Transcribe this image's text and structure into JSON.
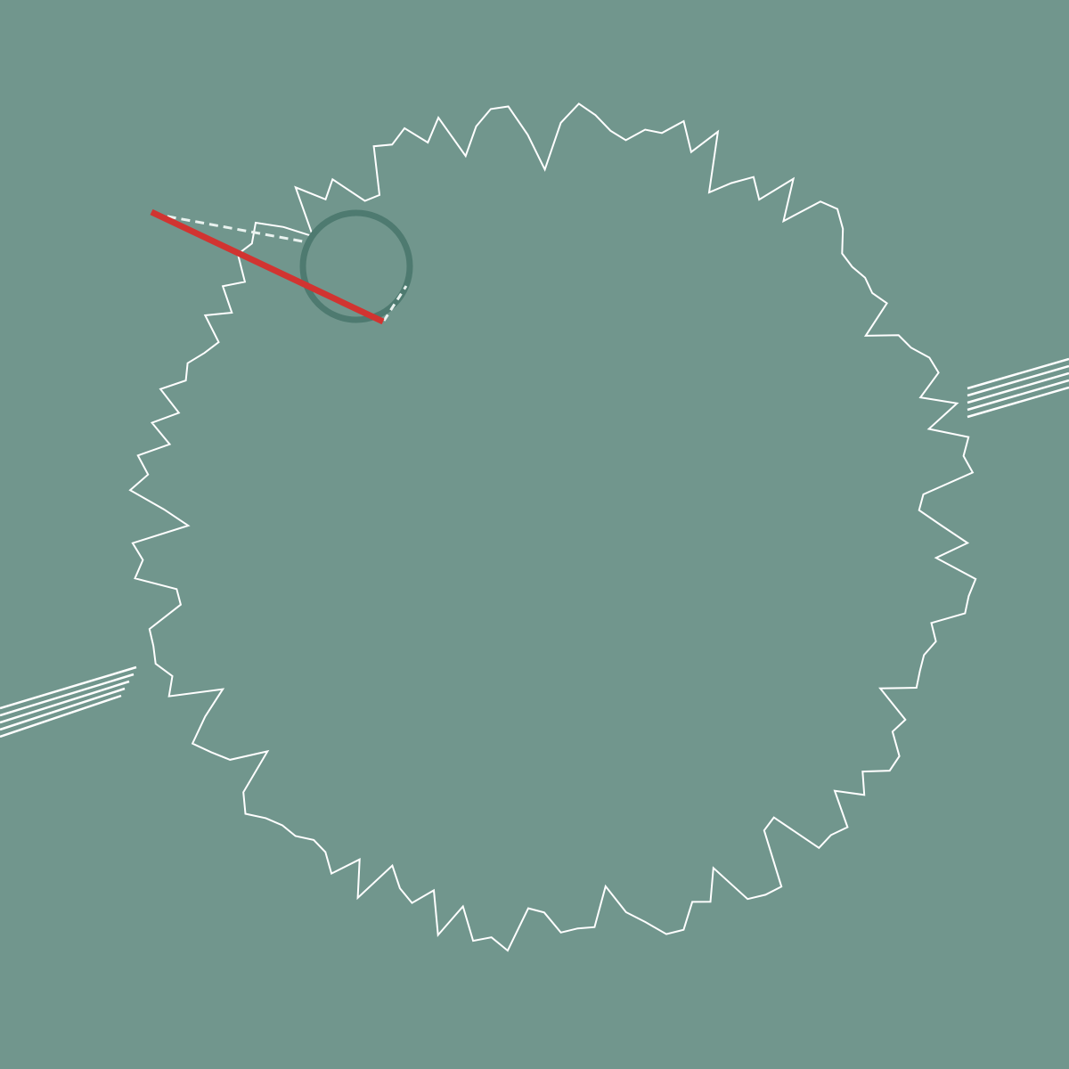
{
  "colors": {
    "background": "#71968d",
    "boundary": "#ffffff",
    "ring": "#4e7a70",
    "aim_line": "#d13431",
    "guide_dashed": "#e9f2ef",
    "connector": "#ffffff"
  },
  "icons": {
    "pivot": "ring-pivot-icon",
    "aim": "aim-line",
    "boundary": "jagged-circle-outline"
  }
}
